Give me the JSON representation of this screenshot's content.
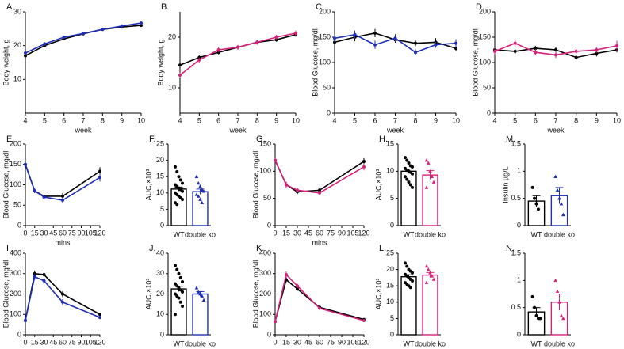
{
  "chart_data": [
    {
      "type": "line",
      "title": "A.",
      "y_label": "Body weight, g",
      "x_label": "week",
      "x": [
        4,
        5,
        6,
        7,
        8,
        9,
        10
      ],
      "xlim": [
        4,
        10
      ],
      "xticks": [
        4,
        5,
        6,
        7,
        8,
        9,
        10
      ],
      "ylim": [
        0,
        30
      ],
      "yticks": [
        10,
        20,
        30
      ],
      "series": [
        {
          "color": "#000000",
          "values": [
            17,
            20,
            22,
            23.5,
            24.8,
            25.5,
            26
          ],
          "errors": [
            0.4,
            0.4,
            0.4,
            0.4,
            0.4,
            0.4,
            0.4
          ]
        },
        {
          "color": "#1f2fb5",
          "values": [
            17.8,
            20.5,
            22.5,
            23.6,
            24.8,
            25.8,
            26.7
          ],
          "errors": [
            0.5,
            0.5,
            0.5,
            0.5,
            0.5,
            0.5,
            0.5
          ]
        }
      ]
    },
    {
      "type": "line",
      "title": "B.",
      "y_label": "Body weight, g",
      "x_label": "week",
      "x": [
        4,
        5,
        6,
        7,
        8,
        9,
        10
      ],
      "xlim": [
        4,
        10
      ],
      "xticks": [
        4,
        5,
        6,
        7,
        8,
        9,
        10
      ],
      "ylim": [
        5,
        25
      ],
      "yticks": [
        10,
        20
      ],
      "series": [
        {
          "color": "#000000",
          "values": [
            14.5,
            16,
            17,
            18,
            19,
            19.5,
            20.5
          ],
          "errors": [
            0.4,
            0.4,
            0.4,
            0.4,
            0.4,
            0.4,
            0.4
          ]
        },
        {
          "color": "#d6217a",
          "values": [
            12.5,
            15.5,
            17.5,
            18,
            19,
            20,
            20.8
          ],
          "errors": [
            0.5,
            0.5,
            0.5,
            0.5,
            0.5,
            0.5,
            0.5
          ]
        }
      ]
    },
    {
      "type": "line",
      "title": "C.",
      "y_label": "Blood Glucose, mg/dl",
      "x_label": "week",
      "x": [
        4,
        5,
        6,
        7,
        8,
        9,
        10
      ],
      "xlim": [
        4,
        10
      ],
      "xticks": [
        4,
        5,
        6,
        7,
        8,
        9,
        10
      ],
      "ylim": [
        0,
        200
      ],
      "yticks": [
        0,
        50,
        100,
        150,
        200
      ],
      "series": [
        {
          "color": "#000000",
          "values": [
            140,
            150,
            158,
            145,
            138,
            140,
            128
          ],
          "errors": [
            8,
            8,
            8,
            6,
            6,
            8,
            6
          ]
        },
        {
          "color": "#1f2fb5",
          "values": [
            148,
            155,
            135,
            148,
            120,
            135,
            138
          ],
          "errors": [
            8,
            8,
            8,
            8,
            6,
            6,
            8
          ]
        }
      ]
    },
    {
      "type": "line",
      "title": "D.",
      "y_label": "Blood Glucose, mg/dl",
      "x_label": "week",
      "x": [
        4,
        5,
        6,
        7,
        8,
        9,
        10
      ],
      "xlim": [
        4,
        10
      ],
      "xticks": [
        4,
        5,
        6,
        7,
        8,
        9,
        10
      ],
      "ylim": [
        0,
        200
      ],
      "yticks": [
        0,
        50,
        100,
        150,
        200
      ],
      "series": [
        {
          "color": "#000000",
          "values": [
            125,
            122,
            128,
            125,
            110,
            118,
            125
          ],
          "errors": [
            5,
            5,
            5,
            5,
            5,
            6,
            5
          ]
        },
        {
          "color": "#d6217a",
          "values": [
            122,
            138,
            120,
            115,
            122,
            125,
            133
          ],
          "errors": [
            6,
            8,
            6,
            6,
            5,
            6,
            10
          ]
        }
      ]
    },
    {
      "type": "line",
      "title": "E.",
      "y_label": "Blood Glucose, mg/dl",
      "x_label": "mins",
      "x": [
        0,
        15,
        30,
        60,
        120
      ],
      "xlim": [
        0,
        120
      ],
      "xticks": [
        0,
        15,
        30,
        45,
        60,
        75,
        90,
        105,
        120
      ],
      "ylim": [
        0,
        200
      ],
      "yticks": [
        0,
        50,
        100,
        150,
        200
      ],
      "series": [
        {
          "color": "#000000",
          "values": [
            150,
            85,
            72,
            72,
            133
          ],
          "errors": [
            5,
            5,
            4,
            8,
            10
          ]
        },
        {
          "color": "#1f2fb5",
          "values": [
            150,
            85,
            70,
            62,
            118
          ],
          "errors": [
            5,
            5,
            4,
            6,
            10
          ]
        }
      ]
    },
    {
      "type": "bar",
      "title": "F.",
      "y_label": "AUC,×10³",
      "categories": [
        "WT",
        "double ko"
      ],
      "values": [
        11.2,
        10.4
      ],
      "errors": [
        0.6,
        0.8
      ],
      "colors": [
        "#000000",
        "#1f2fb5"
      ],
      "ylim": [
        0,
        25
      ],
      "yticks": [
        0,
        5,
        10,
        15,
        20,
        25
      ],
      "points": [
        [
          18,
          16.5,
          15,
          14,
          13,
          12.5,
          12,
          11.5,
          11,
          10.5,
          10,
          9.5,
          9,
          8.5,
          8,
          7,
          6.5
        ],
        [
          15,
          13,
          12,
          11,
          10.5,
          9.5,
          9,
          8,
          7
        ]
      ]
    },
    {
      "type": "line",
      "title": "G.",
      "y_label": "Blood Glucose, mg/dl",
      "x_label": "mins",
      "x": [
        0,
        15,
        30,
        60,
        120
      ],
      "xlim": [
        0,
        120
      ],
      "xticks": [
        0,
        15,
        30,
        45,
        60,
        75,
        90,
        105,
        120
      ],
      "ylim": [
        0,
        150
      ],
      "yticks": [
        0,
        50,
        100,
        150
      ],
      "series": [
        {
          "color": "#000000",
          "values": [
            120,
            75,
            62,
            65,
            118
          ],
          "errors": [
            4,
            4,
            4,
            4,
            6
          ]
        },
        {
          "color": "#d6217a",
          "values": [
            120,
            75,
            65,
            60,
            108
          ],
          "errors": [
            4,
            6,
            4,
            4,
            6
          ]
        }
      ]
    },
    {
      "type": "bar",
      "title": "H.",
      "y_label": "AUC,×10³",
      "categories": [
        "WT",
        "double ko"
      ],
      "values": [
        10,
        9.3
      ],
      "errors": [
        0.4,
        0.8
      ],
      "colors": [
        "#000000",
        "#d6217a"
      ],
      "ylim": [
        0,
        15
      ],
      "yticks": [
        0,
        5,
        10,
        15
      ],
      "points": [
        [
          12.5,
          12,
          11.5,
          11,
          10.8,
          10.5,
          10.2,
          10,
          9.8,
          9.5,
          9,
          8.5,
          8,
          7.5,
          7
        ],
        [
          12,
          11.5,
          10,
          9,
          8,
          7
        ]
      ]
    },
    {
      "type": "bar",
      "title": "M.",
      "y_label": "Insulin µg/L",
      "categories": [
        "WT",
        "double ko"
      ],
      "values": [
        0.45,
        0.55
      ],
      "errors": [
        0.1,
        0.15
      ],
      "colors": [
        "#000000",
        "#1f2fb5"
      ],
      "ylim": [
        0,
        1.5
      ],
      "yticks": [
        0,
        0.5,
        1,
        1.5
      ],
      "points": [
        [
          0.7,
          0.5,
          0.4,
          0.3
        ],
        [
          0.9,
          0.65,
          0.5,
          0.4,
          0.2
        ]
      ]
    },
    {
      "type": "line",
      "title": "I.",
      "y_label": "Blood Glucose, mg/dl",
      "x_label": "mins",
      "x": [
        0,
        15,
        30,
        60,
        120
      ],
      "xlim": [
        0,
        120
      ],
      "xticks": [
        0,
        15,
        30,
        45,
        60,
        75,
        90,
        105,
        120
      ],
      "ylim": [
        0,
        400
      ],
      "yticks": [
        0,
        100,
        200,
        300,
        400
      ],
      "series": [
        {
          "color": "#000000",
          "values": [
            70,
            300,
            295,
            200,
            100
          ],
          "errors": [
            8,
            15,
            20,
            15,
            8
          ]
        },
        {
          "color": "#1f2fb5",
          "values": [
            70,
            285,
            265,
            160,
            85
          ],
          "errors": [
            8,
            15,
            20,
            15,
            8
          ]
        }
      ]
    },
    {
      "type": "bar",
      "title": "J.",
      "y_label": "AUC,×10³",
      "categories": [
        "WT",
        "double ko"
      ],
      "values": [
        22.5,
        20
      ],
      "errors": [
        1.3,
        1.2
      ],
      "colors": [
        "#000000",
        "#1f2fb5"
      ],
      "ylim": [
        0,
        40
      ],
      "yticks": [
        0,
        10,
        20,
        30,
        40
      ],
      "points": [
        [
          34,
          32,
          30,
          28,
          26,
          25,
          24,
          23,
          22,
          21,
          20,
          19,
          18,
          16,
          14,
          10
        ],
        [
          23,
          21,
          20,
          19,
          17
        ]
      ]
    },
    {
      "type": "line",
      "title": "K.",
      "y_label": "Blood Glucose, mg/dl",
      "x_label": "mins",
      "x": [
        0,
        15,
        30,
        60,
        120
      ],
      "xlim": [
        0,
        120
      ],
      "xticks": [
        0,
        15,
        30,
        45,
        60,
        75,
        90,
        105,
        120
      ],
      "ylim": [
        0,
        400
      ],
      "yticks": [
        0,
        100,
        200,
        300,
        400
      ],
      "series": [
        {
          "color": "#000000",
          "values": [
            65,
            270,
            225,
            135,
            75
          ],
          "errors": [
            5,
            12,
            10,
            6,
            5
          ]
        },
        {
          "color": "#d6217a",
          "values": [
            65,
            295,
            240,
            130,
            70
          ],
          "errors": [
            5,
            15,
            10,
            6,
            5
          ]
        }
      ]
    },
    {
      "type": "bar",
      "title": "L.",
      "y_label": "AUC,×10³",
      "categories": [
        "WT",
        "double ko"
      ],
      "values": [
        17.8,
        18.3
      ],
      "errors": [
        0.6,
        0.8
      ],
      "colors": [
        "#000000",
        "#d6217a"
      ],
      "ylim": [
        0,
        25
      ],
      "yticks": [
        0,
        5,
        10,
        15,
        20,
        25
      ],
      "points": [
        [
          22,
          21,
          20,
          19.5,
          19,
          18.5,
          18,
          17.5,
          17,
          16.5,
          16,
          15.5,
          15,
          14.5
        ],
        [
          21,
          20,
          19,
          18,
          17,
          16
        ]
      ]
    },
    {
      "type": "bar",
      "title": "N.",
      "categories": [
        "WT",
        "double ko"
      ],
      "values": [
        0.42,
        0.6
      ],
      "errors": [
        0.08,
        0.15
      ],
      "colors": [
        "#000000",
        "#d6217a"
      ],
      "ylim": [
        0,
        1.5
      ],
      "yticks": [
        0,
        0.5,
        1,
        1.5
      ],
      "points": [
        [
          0.7,
          0.5,
          0.35,
          0.3,
          0.3
        ],
        [
          1.0,
          0.8,
          0.6,
          0.35,
          0.3
        ]
      ]
    }
  ]
}
